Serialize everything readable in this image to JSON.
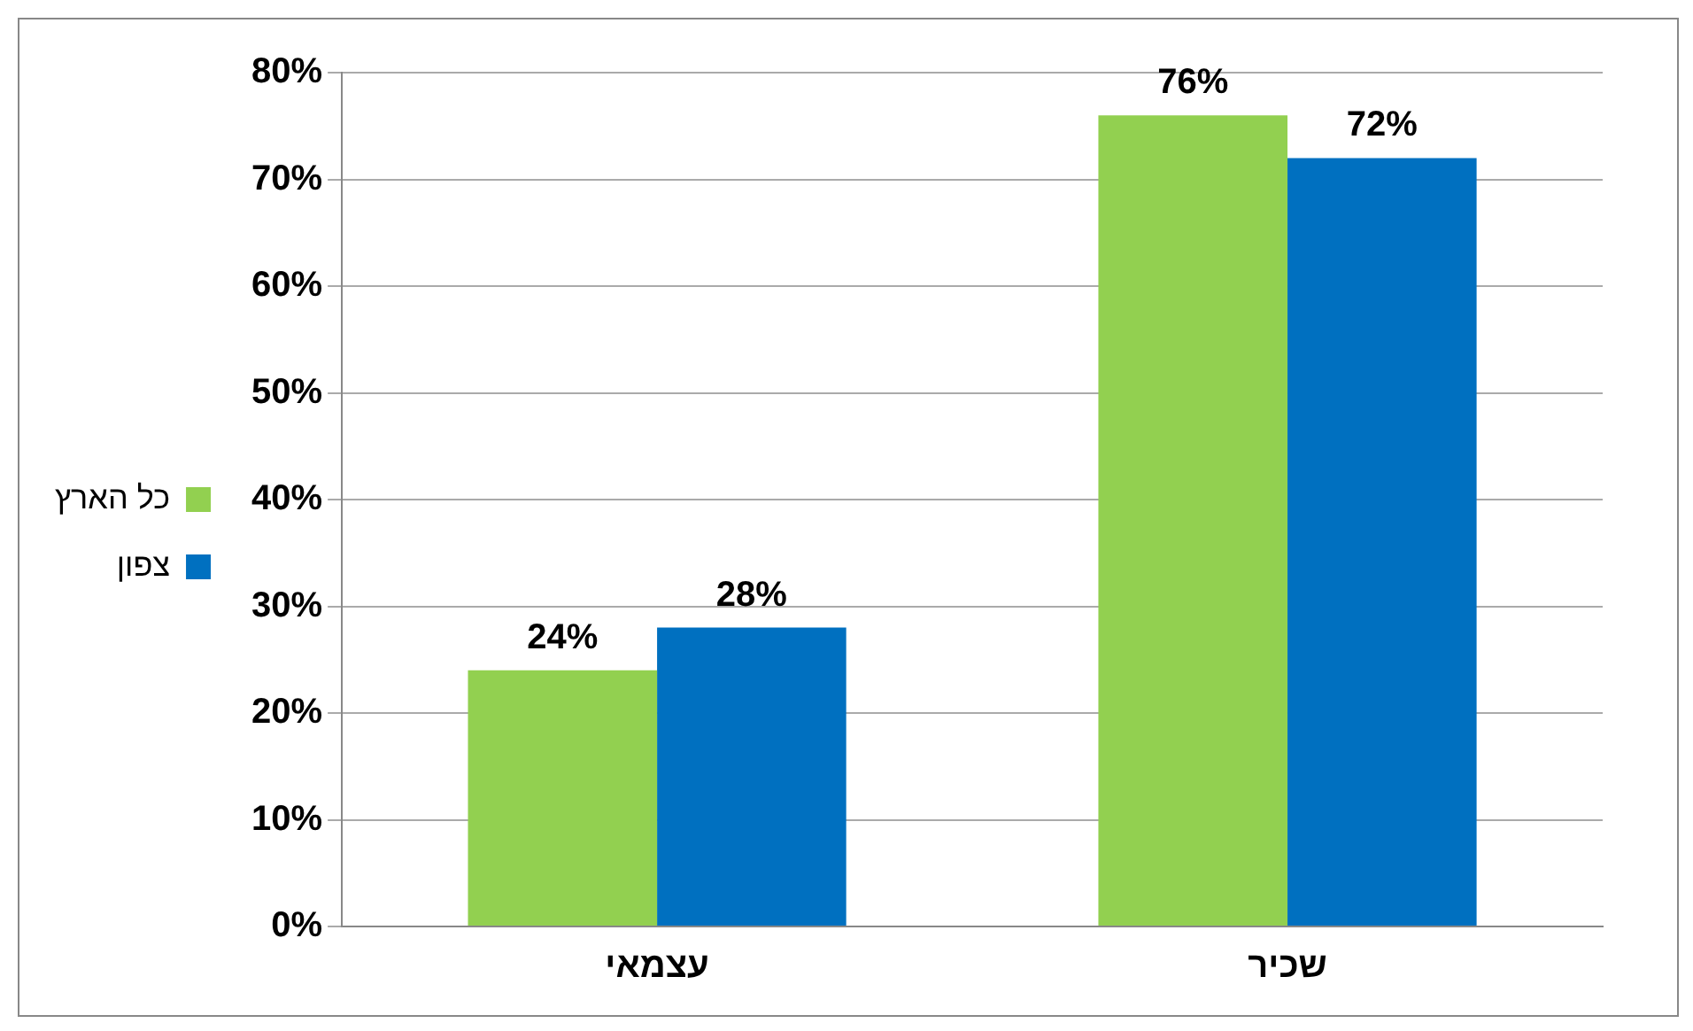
{
  "chart_data": {
    "type": "bar",
    "categories": [
      "עצמאי",
      "שכיר"
    ],
    "series": [
      {
        "name": "כל הארץ",
        "color": "#92d050",
        "values": [
          24,
          76
        ],
        "value_labels": [
          "24%",
          "76%"
        ]
      },
      {
        "name": "צפון",
        "color": "#0070c0",
        "values": [
          28,
          72
        ],
        "value_labels": [
          "28%",
          "72%"
        ]
      }
    ],
    "ylim": [
      0,
      80
    ],
    "yticks": [
      {
        "value": 0,
        "label": "0%"
      },
      {
        "value": 10,
        "label": "10%"
      },
      {
        "value": 20,
        "label": "20%"
      },
      {
        "value": 30,
        "label": "30%"
      },
      {
        "value": 40,
        "label": "40%"
      },
      {
        "value": 50,
        "label": "50%"
      },
      {
        "value": 60,
        "label": "60%"
      },
      {
        "value": 70,
        "label": "70%"
      },
      {
        "value": 80,
        "label": "80%"
      }
    ],
    "grid": "y",
    "legend": "left"
  }
}
